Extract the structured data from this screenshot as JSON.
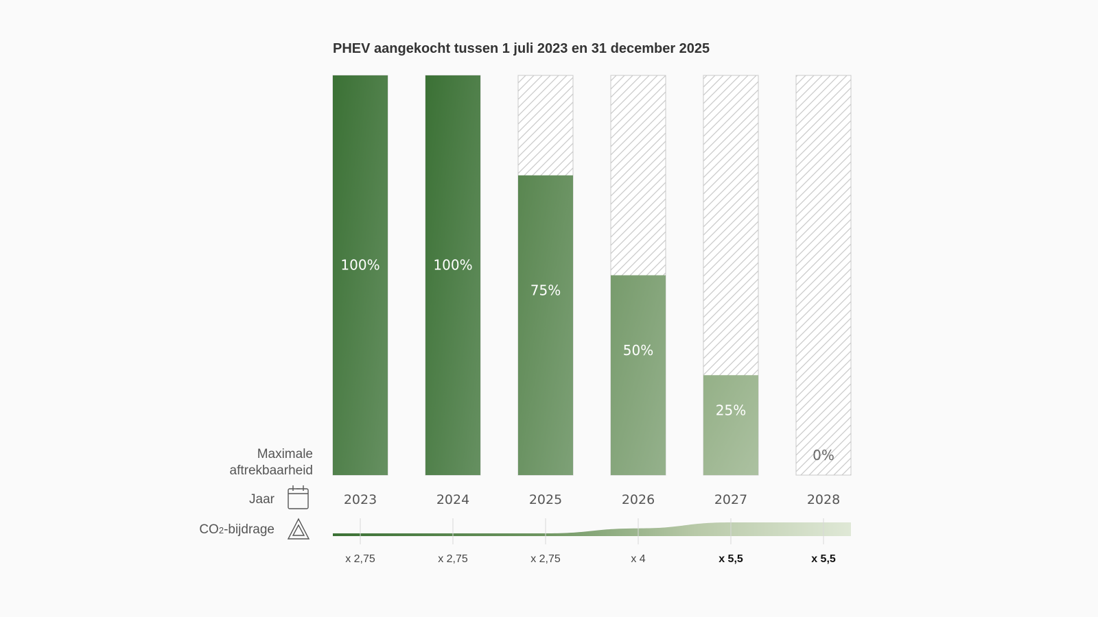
{
  "title": "PHEV aangekocht tussen 1 juli 2023 en 31 december 2025",
  "row_labels": {
    "max_line1": "Maximale",
    "max_line2": "aftrekbaarheid",
    "year": "Jaar",
    "co2_prefix": "CO",
    "co2_sub": "2",
    "co2_suffix": "-bijdrage"
  },
  "icons": {
    "year": "calendar-icon",
    "co2": "warning-triangle-icon"
  },
  "colors": {
    "bar_dark": "#3b7135",
    "bar_light": "#c7d4b6",
    "hatch_stroke": "#c9c9c9",
    "co2_start": "#3b7135",
    "co2_end": "#dfe8d6"
  },
  "chart_data": {
    "type": "bar",
    "title": "PHEV aangekocht tussen 1 juli 2023 en 31 december 2025",
    "xlabel": "Jaar",
    "ylabel": "Maximale aftrekbaarheid",
    "ylim": [
      0,
      100
    ],
    "unit": "%",
    "categories": [
      "2023",
      "2024",
      "2025",
      "2026",
      "2027",
      "2028"
    ],
    "values": [
      100,
      100,
      75,
      50,
      25,
      0
    ],
    "value_labels": [
      "100%",
      "100%",
      "75%",
      "50%",
      "25%",
      "0%"
    ],
    "co2_multiplier": {
      "name": "CO2-bijdrage",
      "values": [
        2.75,
        2.75,
        2.75,
        4,
        5.5,
        5.5
      ],
      "labels": [
        "x 2,75",
        "x 2,75",
        "x 2,75",
        "x 4",
        "x 5,5",
        "x 5,5"
      ],
      "bold": [
        false,
        false,
        false,
        false,
        true,
        true
      ]
    }
  }
}
